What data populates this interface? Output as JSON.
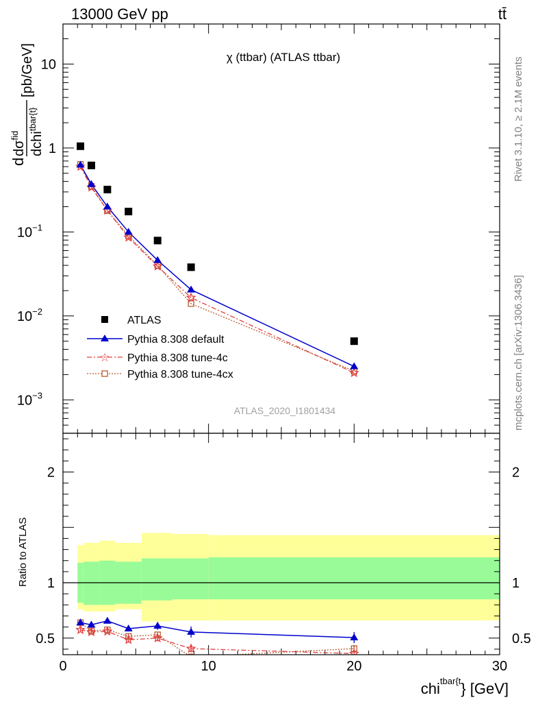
{
  "header": {
    "energy_label": "13000 GeV pp",
    "process_label": "tt̄"
  },
  "side_labels": {
    "rivet": "Rivet 3.1.10, ≥ 2.1M events",
    "mcplots": "mcplots.cern.ch [arXiv:1306.3436]"
  },
  "colors": {
    "data": "#000000",
    "default": "#0000cc",
    "tune4c": "#e03c3c",
    "tune4cx": "#b85a30",
    "band_inner": "#98fb98",
    "band_outer": "#ffff99"
  },
  "chart_data": [
    {
      "type": "scatter",
      "title": "χ (ttbar) (ATLAS ttbar)",
      "analysis_label": "ATLAS_2020_I1801434",
      "ylabel": {
        "prefix": "d",
        "num": "dσ",
        "num_sup": "fid",
        "den": "dchi",
        "den_sup": "tbar{t}",
        "unit": "[pb/GeV]"
      },
      "yscale": "log",
      "ylim": [
        0.0004,
        30
      ],
      "xlim": [
        0,
        30
      ],
      "y_ticks": [
        {
          "value": 10,
          "label": "10"
        },
        {
          "value": 1,
          "label": "1"
        },
        {
          "value": 0.1,
          "base": "10",
          "exp": "−1"
        },
        {
          "value": 0.01,
          "base": "10",
          "exp": "−2"
        },
        {
          "value": 0.001,
          "base": "10",
          "exp": "−3"
        }
      ],
      "legend": {
        "position": "bottom-left",
        "entries": [
          "ATLAS",
          "Pythia 8.308 default",
          "Pythia 8.308 tune-4c",
          "Pythia 8.308 tune-4cx"
        ]
      },
      "x": [
        1.2,
        1.95,
        3.05,
        4.5,
        6.5,
        8.8,
        20
      ],
      "series": [
        {
          "name": "ATLAS",
          "values": [
            1.05,
            0.62,
            0.32,
            0.175,
            0.079,
            0.038,
            0.005
          ]
        },
        {
          "name": "Pythia 8.308 default",
          "values": [
            0.63,
            0.37,
            0.2,
            0.1,
            0.046,
            0.0205,
            0.0025
          ]
        },
        {
          "name": "Pythia 8.308 tune-4c",
          "values": [
            0.6,
            0.34,
            0.18,
            0.086,
            0.039,
            0.0165,
            0.0021
          ]
        },
        {
          "name": "Pythia 8.308 tune-4cx",
          "values": [
            0.64,
            0.35,
            0.18,
            0.09,
            0.04,
            0.014,
            0.0022
          ]
        }
      ]
    },
    {
      "type": "scatter",
      "ylabel": "Ratio to ATLAS",
      "xlabel": {
        "base": "chi",
        "sup": "tbar{t",
        "tail": "} [GeV]"
      },
      "xlim": [
        0,
        30
      ],
      "ylim": [
        0.35,
        2.35
      ],
      "x_ticks": [
        0,
        10,
        20,
        30
      ],
      "y_ticks": [
        0.5,
        1,
        2
      ],
      "bin_edges": [
        1,
        1.4,
        2.5,
        3.6,
        5.4,
        7.5,
        10,
        30
      ],
      "band_inner": [
        [
          0.82,
          1.18
        ],
        [
          0.8,
          1.19
        ],
        [
          0.8,
          1.2
        ],
        [
          0.81,
          1.19
        ],
        [
          0.84,
          1.22
        ],
        [
          0.85,
          1.22
        ],
        [
          0.85,
          1.23
        ]
      ],
      "band_outer": [
        [
          0.76,
          1.34
        ],
        [
          0.74,
          1.36
        ],
        [
          0.74,
          1.38
        ],
        [
          0.76,
          1.36
        ],
        [
          0.65,
          1.45
        ],
        [
          0.66,
          1.44
        ],
        [
          0.66,
          1.43
        ]
      ],
      "x": [
        1.2,
        1.95,
        3.05,
        4.5,
        6.5,
        8.8,
        20
      ],
      "series": [
        {
          "name": "Pythia 8.308 default",
          "values": [
            0.64,
            0.62,
            0.655,
            0.585,
            0.61,
            0.555,
            0.505
          ],
          "errors": [
            0.02,
            0.02,
            0.02,
            0.025,
            0.035,
            0.05,
            0.05
          ]
        },
        {
          "name": "Pythia 8.308 tune-4c",
          "values": [
            0.575,
            0.555,
            0.56,
            0.485,
            0.5,
            0.405,
            0.36
          ],
          "errors": [
            0.02,
            0.02,
            0.02,
            0.025,
            0.03,
            0.035,
            0.04
          ]
        },
        {
          "name": "Pythia 8.308 tune-4cx",
          "values": [
            0.64,
            0.565,
            0.575,
            0.515,
            0.53,
            0.33,
            0.405
          ],
          "errors": [
            0.015,
            0.015,
            0.015,
            0.02,
            0.025,
            0.03,
            0.03
          ]
        }
      ]
    }
  ]
}
